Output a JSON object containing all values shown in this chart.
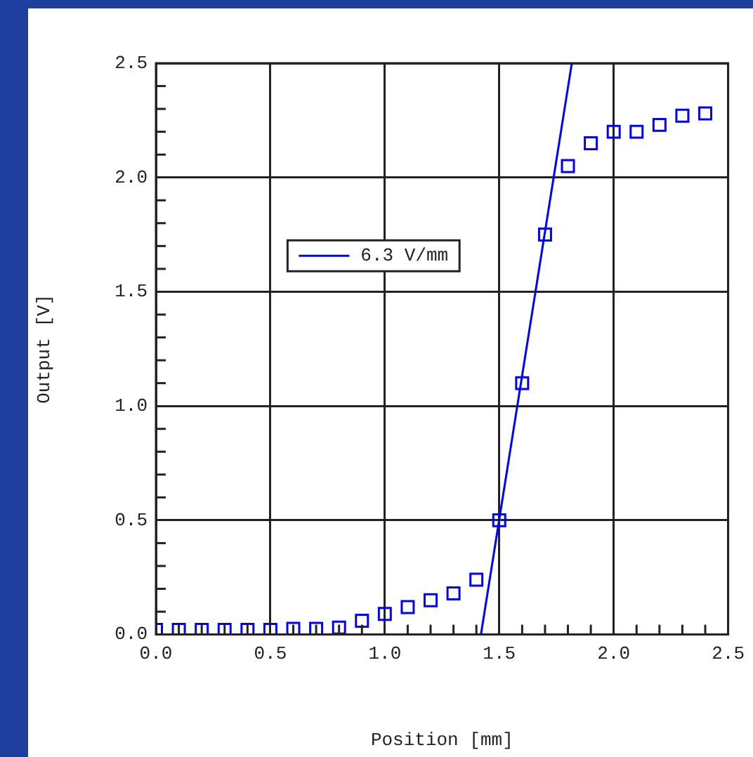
{
  "chart_data": {
    "type": "scatter",
    "xlabel": "Position [mm]",
    "ylabel": "Output [V]",
    "series": [
      {
        "type": "scatter",
        "color": "#0000ff",
        "marker": "square",
        "x": [
          0,
          0.1,
          0.2,
          0.3,
          0.4,
          0.5,
          0.6,
          0.7,
          0.8,
          0.9,
          1.0,
          1.1,
          1.2,
          1.3,
          1.4,
          1.5,
          1.6,
          1.7,
          1.8,
          1.9,
          2.0,
          2.1,
          2.2,
          2.3,
          2.4
        ],
        "values": [
          0.02,
          0.02,
          0.02,
          0.02,
          0.02,
          0.02,
          0.025,
          0.025,
          0.03,
          0.06,
          0.09,
          0.12,
          0.15,
          0.18,
          0.24,
          0.5,
          1.1,
          1.75,
          2.05,
          2.15,
          2.2,
          2.2,
          2.23,
          2.27,
          2.28
        ]
      },
      {
        "type": "line",
        "name": "6.3 V/mm",
        "color": "#0000ff",
        "marker": "none",
        "line_style": "solid",
        "x": [
          1.42,
          1.817
        ],
        "values": [
          0,
          2.5
        ]
      }
    ],
    "xlim": [
      0,
      2.5
    ],
    "ylim": [
      0,
      2.5
    ],
    "xticks": [
      {
        "value": 0,
        "label": "0.0"
      },
      {
        "value": 0.1,
        "label": null
      },
      {
        "value": 0.2,
        "label": null
      },
      {
        "value": 0.3,
        "label": null
      },
      {
        "value": 0.4,
        "label": null
      },
      {
        "value": 0.5,
        "label": "0.5"
      },
      {
        "value": 0.6,
        "label": null
      },
      {
        "value": 0.7,
        "label": null
      },
      {
        "value": 0.8,
        "label": null
      },
      {
        "value": 0.9,
        "label": null
      },
      {
        "value": 1,
        "label": "1.0"
      },
      {
        "value": 1.1,
        "label": null
      },
      {
        "value": 1.2,
        "label": null
      },
      {
        "value": 1.3,
        "label": null
      },
      {
        "value": 1.4,
        "label": null
      },
      {
        "value": 1.5,
        "label": "1.5"
      },
      {
        "value": 1.6,
        "label": null
      },
      {
        "value": 1.7,
        "label": null
      },
      {
        "value": 1.8,
        "label": null
      },
      {
        "value": 1.9,
        "label": null
      },
      {
        "value": 2,
        "label": "2.0"
      },
      {
        "value": 2.1,
        "label": null
      },
      {
        "value": 2.2,
        "label": null
      },
      {
        "value": 2.3,
        "label": null
      },
      {
        "value": 2.4,
        "label": null
      },
      {
        "value": 2.5,
        "label": "2.5"
      }
    ],
    "yticks": [
      {
        "value": 0,
        "label": "0.0"
      },
      {
        "value": 0.1,
        "label": null
      },
      {
        "value": 0.2,
        "label": null
      },
      {
        "value": 0.3,
        "label": null
      },
      {
        "value": 0.4,
        "label": null
      },
      {
        "value": 0.5,
        "label": "0.5"
      },
      {
        "value": 0.6,
        "label": null
      },
      {
        "value": 0.7,
        "label": null
      },
      {
        "value": 0.8,
        "label": null
      },
      {
        "value": 0.9,
        "label": null
      },
      {
        "value": 1,
        "label": "1.0"
      },
      {
        "value": 1.1,
        "label": null
      },
      {
        "value": 1.2,
        "label": null
      },
      {
        "value": 1.3,
        "label": null
      },
      {
        "value": 1.4,
        "label": null
      },
      {
        "value": 1.5,
        "label": "1.5"
      },
      {
        "value": 1.6,
        "label": null
      },
      {
        "value": 1.7,
        "label": null
      },
      {
        "value": 1.8,
        "label": null
      },
      {
        "value": 1.9,
        "label": null
      },
      {
        "value": 2,
        "label": "2.0"
      },
      {
        "value": 2.1,
        "label": null
      },
      {
        "value": 2.2,
        "label": null
      },
      {
        "value": 2.3,
        "label": null
      },
      {
        "value": 2.4,
        "label": null
      },
      {
        "value": 2.5,
        "label": "2.5"
      }
    ],
    "grid": true,
    "legend": "center"
  }
}
